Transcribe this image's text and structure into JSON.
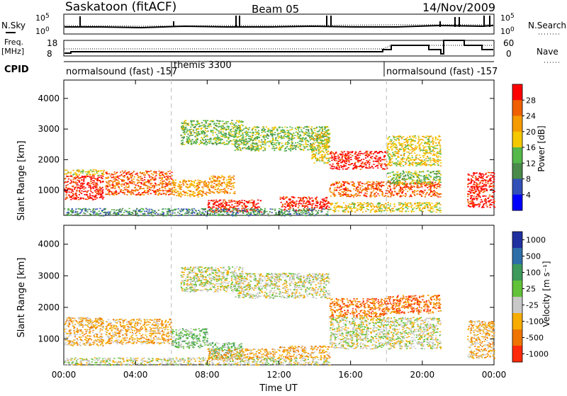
{
  "header": {
    "title": "Saskatoon (fitACF)",
    "beam": "Beam 05",
    "date": "14/Nov/2009"
  },
  "colors": {
    "power_scale": [
      "#0000ff",
      "#3250b8",
      "#4a8a4a",
      "#54b84a",
      "#f5c800",
      "#f59a00",
      "#f06000",
      "#ff0000"
    ],
    "velocity_scale": [
      "#2030a0",
      "#2e6ea8",
      "#3d9a5a",
      "#62c23a",
      "#c8c8c8",
      "#f6ac00",
      "#ef7400",
      "#ff2a0a"
    ]
  },
  "strips": {
    "nsky": {
      "label": "N.Sky",
      "left_ticks": [
        "10^5",
        "10^0"
      ],
      "right_ticks": [
        "10^5",
        "10^0"
      ],
      "right_label": "N.Search"
    },
    "freq": {
      "label": "Freq.",
      "unit": "[MHz]",
      "left_ticks": [
        "18",
        "8"
      ],
      "right_ticks": [
        "60",
        "0"
      ],
      "right_label": "Nave"
    },
    "cpid": {
      "label": "CPID",
      "segments": [
        {
          "label": "normalsound (fast) -157",
          "start_hour": 0,
          "end_hour": 6
        },
        {
          "label": "themis 3300",
          "start_hour": 6,
          "end_hour": 18
        },
        {
          "label": "normalsound (fast) -157",
          "start_hour": 18,
          "end_hour": 24
        }
      ]
    }
  },
  "chart_data": [
    {
      "type": "heatmap",
      "name": "power-panel",
      "ylabel": "Slant Range [km]",
      "ylim": [
        180,
        4600
      ],
      "xlim": [
        0,
        24
      ],
      "yticks": [
        1000,
        2000,
        3000,
        4000
      ],
      "colorbar": {
        "label": "Power [dB]",
        "tick_labels": [
          "4",
          "8",
          "12",
          "16",
          "20",
          "24",
          "28"
        ],
        "range": [
          0,
          32
        ]
      },
      "regions": [
        {
          "x": [
            0.0,
            2.2
          ],
          "y": [
            700,
            1500
          ],
          "level": 7
        },
        {
          "x": [
            0.0,
            2.2
          ],
          "y": [
            1500,
            1700
          ],
          "level": 4
        },
        {
          "x": [
            2.3,
            6.0
          ],
          "y": [
            850,
            1650
          ],
          "level": 6
        },
        {
          "x": [
            6.0,
            8.0
          ],
          "y": [
            800,
            1350
          ],
          "level": 5
        },
        {
          "x": [
            6.5,
            10.0
          ],
          "y": [
            2500,
            3300
          ],
          "level": 3
        },
        {
          "x": [
            8.0,
            9.5
          ],
          "y": [
            900,
            1500
          ],
          "level": 5
        },
        {
          "x": [
            9.5,
            14.8
          ],
          "y": [
            2300,
            3100
          ],
          "level": 3
        },
        {
          "x": [
            8.0,
            11.0
          ],
          "y": [
            300,
            700
          ],
          "level": 7
        },
        {
          "x": [
            12.0,
            14.8
          ],
          "y": [
            350,
            800
          ],
          "level": 7
        },
        {
          "x": [
            13.8,
            14.8
          ],
          "y": [
            1900,
            2900
          ],
          "level": 4
        },
        {
          "x": [
            14.8,
            18.0
          ],
          "y": [
            1700,
            2300
          ],
          "level": 7
        },
        {
          "x": [
            14.8,
            21.0
          ],
          "y": [
            800,
            1300
          ],
          "level": 6
        },
        {
          "x": [
            18.0,
            21.0
          ],
          "y": [
            1800,
            2800
          ],
          "level": 4
        },
        {
          "x": [
            18.0,
            21.0
          ],
          "y": [
            1200,
            1650
          ],
          "level": 3
        },
        {
          "x": [
            22.5,
            24.0
          ],
          "y": [
            450,
            1600
          ],
          "level": 7
        },
        {
          "x": [
            0.0,
            14.8
          ],
          "y": [
            180,
            420
          ],
          "level": 2
        },
        {
          "x": [
            14.8,
            21.0
          ],
          "y": [
            300,
            620
          ],
          "level": 4
        }
      ]
    },
    {
      "type": "heatmap",
      "name": "velocity-panel",
      "ylabel": "Slant Range [km]",
      "xlabel": "Time UT",
      "ylim": [
        180,
        4600
      ],
      "xlim": [
        0,
        24
      ],
      "yticks": [
        1000,
        2000,
        3000,
        4000
      ],
      "xticks": [
        "00:00",
        "04:00",
        "08:00",
        "12:00",
        "16:00",
        "20:00",
        "00:00"
      ],
      "colorbar": {
        "label": "Velocity [m s⁻¹]",
        "tick_labels": [
          "1000",
          "500",
          "100",
          "25",
          "-25",
          "-100",
          "-500",
          "-1000"
        ],
        "range": [
          -1000,
          1000
        ]
      },
      "regions": [
        {
          "x": [
            0.0,
            2.2
          ],
          "y": [
            800,
            1700
          ],
          "level": 5
        },
        {
          "x": [
            2.3,
            6.0
          ],
          "y": [
            850,
            1650
          ],
          "level": 5
        },
        {
          "x": [
            6.0,
            8.0
          ],
          "y": [
            700,
            1350
          ],
          "level": 3
        },
        {
          "x": [
            6.5,
            10.0
          ],
          "y": [
            2500,
            3300
          ],
          "level": 4
        },
        {
          "x": [
            8.0,
            10.0
          ],
          "y": [
            400,
            900
          ],
          "level": 3
        },
        {
          "x": [
            8.0,
            12.0
          ],
          "y": [
            350,
            700
          ],
          "level": 5
        },
        {
          "x": [
            12.0,
            14.8
          ],
          "y": [
            400,
            800
          ],
          "level": 5
        },
        {
          "x": [
            9.5,
            14.8
          ],
          "y": [
            2300,
            3100
          ],
          "level": 4
        },
        {
          "x": [
            14.8,
            18.0
          ],
          "y": [
            1700,
            2300
          ],
          "level": 6
        },
        {
          "x": [
            18.0,
            21.0
          ],
          "y": [
            1800,
            2400
          ],
          "level": 6
        },
        {
          "x": [
            14.8,
            21.0
          ],
          "y": [
            700,
            1700
          ],
          "level": 4
        },
        {
          "x": [
            22.5,
            24.0
          ],
          "y": [
            400,
            1600
          ],
          "level": 5
        },
        {
          "x": [
            0.0,
            14.8
          ],
          "y": [
            180,
            420
          ],
          "level": 4
        }
      ]
    }
  ]
}
